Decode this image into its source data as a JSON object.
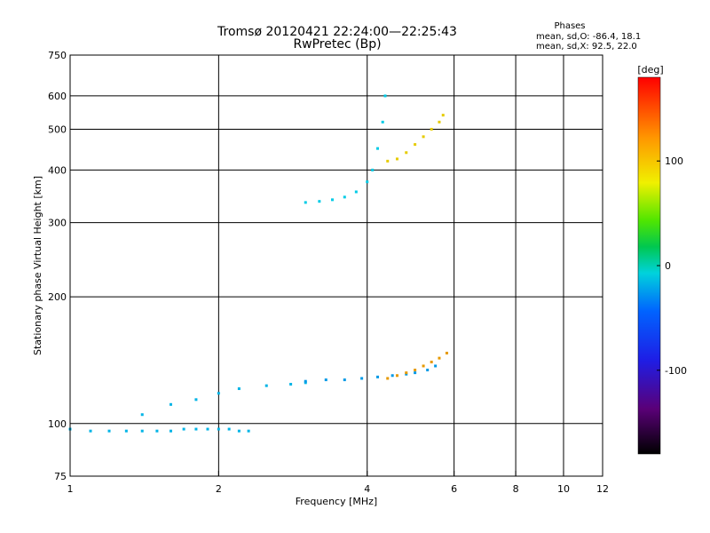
{
  "chart_data": {
    "type": "scatter",
    "title": "Tromsø 20120421 22:24:00—22:25:43",
    "subtitle": "RwPretec (Bp)",
    "xlabel": "Frequency [MHz]",
    "ylabel": "Stationary phase Virtual Height [km]",
    "x_scale": "log",
    "y_scale": "log",
    "xlim": [
      1,
      12
    ],
    "ylim": [
      75,
      750
    ],
    "x_ticks": [
      1,
      2,
      4,
      6,
      8,
      10,
      12
    ],
    "y_ticks": [
      75,
      100,
      200,
      300,
      400,
      500,
      600,
      750
    ],
    "grid": true,
    "phases_box": {
      "title": "Phases",
      "line_o": "mean, sd,O: -86.4, 18.1",
      "line_x": "mean, sd,X:  92.5, 22.0"
    },
    "colorbar": {
      "label": "[deg]",
      "range": [
        -180,
        180
      ],
      "ticks": [
        "100",
        "0",
        "-100"
      ],
      "tick_values": [
        100,
        0,
        -100
      ]
    },
    "traces": [
      {
        "name": "",
        "phase": -110,
        "x": [
          1.0,
          1.1,
          1.2,
          1.3,
          1.4,
          1.5,
          1.6,
          1.7,
          1.8,
          1.9,
          2.0,
          2.1,
          2.2,
          2.3
        ],
        "y": [
          97,
          96,
          96,
          96,
          96,
          96,
          96,
          97,
          97,
          97,
          97,
          97,
          96,
          96
        ]
      },
      {
        "name": "",
        "phase": -110,
        "x": [
          1.4,
          1.6,
          1.8,
          2.0,
          2.2,
          2.5,
          2.8,
          3.0
        ],
        "y": [
          105,
          111,
          114,
          118,
          121,
          123,
          124,
          125
        ]
      },
      {
        "name": "",
        "phase": -120,
        "x": [
          3.0,
          3.3,
          3.6,
          3.9,
          4.2,
          4.5,
          4.8,
          5.0,
          5.3,
          5.5
        ],
        "y": [
          126,
          127,
          127,
          128,
          129,
          130,
          131,
          132,
          134,
          137
        ]
      },
      {
        "name": "",
        "phase": -100,
        "x": [
          3.0,
          3.2,
          3.4,
          3.6,
          3.8,
          4.0,
          4.1,
          4.2,
          4.3,
          4.35
        ],
        "y": [
          335,
          337,
          340,
          345,
          355,
          375,
          400,
          450,
          520,
          600
        ]
      },
      {
        "name": "",
        "phase": 100,
        "x": [
          4.4,
          4.6,
          4.8,
          5.0,
          5.2,
          5.4,
          5.6,
          5.7
        ],
        "y": [
          420,
          425,
          440,
          460,
          480,
          500,
          520,
          540
        ]
      },
      {
        "name": "",
        "phase": 120,
        "x": [
          4.4,
          4.6,
          4.8,
          5.0,
          5.2,
          5.4,
          5.6,
          5.8
        ],
        "y": [
          128,
          130,
          132,
          134,
          137,
          140,
          143,
          147
        ]
      }
    ]
  }
}
